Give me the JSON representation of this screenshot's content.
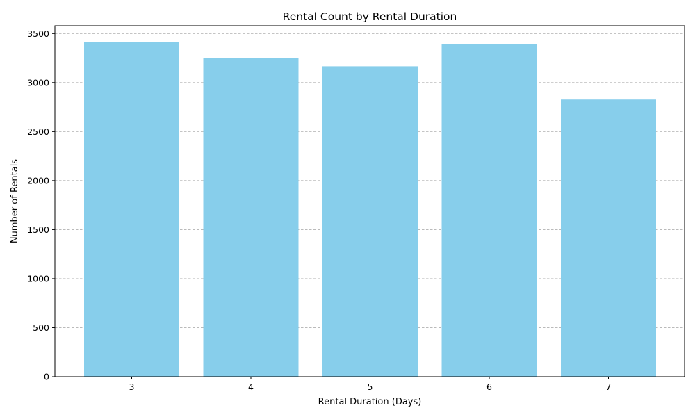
{
  "chart_data": {
    "type": "bar",
    "title": "Rental Count by Rental Duration",
    "xlabel": "Rental Duration (Days)",
    "ylabel": "Number of Rentals",
    "categories": [
      "3",
      "4",
      "5",
      "6",
      "7"
    ],
    "values": [
      3412,
      3250,
      3166,
      3392,
      2827
    ],
    "ylim": [
      0,
      3580
    ],
    "yticks": [
      0,
      500,
      1000,
      1500,
      2000,
      2500,
      3000,
      3500
    ],
    "grid": "y-dashed",
    "bar_color": "#87CEEB",
    "grid_color": "#b0b0b0"
  }
}
